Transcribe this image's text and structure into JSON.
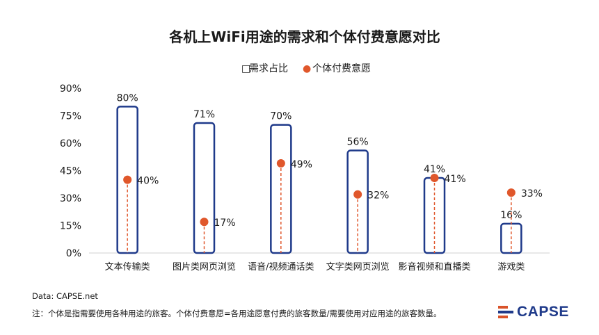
{
  "chart_data": {
    "type": "bar",
    "title": "各机上WiFi用途的需求和个体付费意愿对比",
    "categories": [
      "文本传输类",
      "图片类网页浏览",
      "语音/视频通话类",
      "文字类网页浏览",
      "影音视频和直播类",
      "游戏类"
    ],
    "series": [
      {
        "name": "需求占比",
        "kind": "bar",
        "values": [
          80,
          71,
          70,
          56,
          41,
          16
        ],
        "labels": [
          "80%",
          "71%",
          "70%",
          "56%",
          "41%",
          "16%"
        ]
      },
      {
        "name": "个体付费意愿",
        "kind": "point",
        "values": [
          40,
          17,
          49,
          32,
          41,
          33
        ],
        "labels": [
          "40%",
          "17%",
          "49%",
          "32%",
          "41%",
          "33%"
        ]
      }
    ],
    "yticks": [
      "0%",
      "15%",
      "30%",
      "45%",
      "60%",
      "75%",
      "90%"
    ],
    "ytick_values": [
      0,
      15,
      30,
      45,
      60,
      75,
      90
    ],
    "ylim": [
      0,
      90
    ],
    "legend": [
      {
        "name": "需求占比",
        "symbol": "□"
      },
      {
        "name": "个体付费意愿",
        "symbol": "●"
      }
    ],
    "grid": false,
    "legend_position": "top-center"
  },
  "footer": {
    "source": "Data: CAPSE.net",
    "note": "注：个体是指需要使用各种用途的旅客。个体付费意愿=各用途愿意付费的旅客数量/需要使用对应用途的旅客数量。",
    "logo": "CAPSE"
  },
  "colors": {
    "bar_stroke": "#1f3a8a",
    "point": "#e0572b",
    "text": "#1a1a1a"
  }
}
